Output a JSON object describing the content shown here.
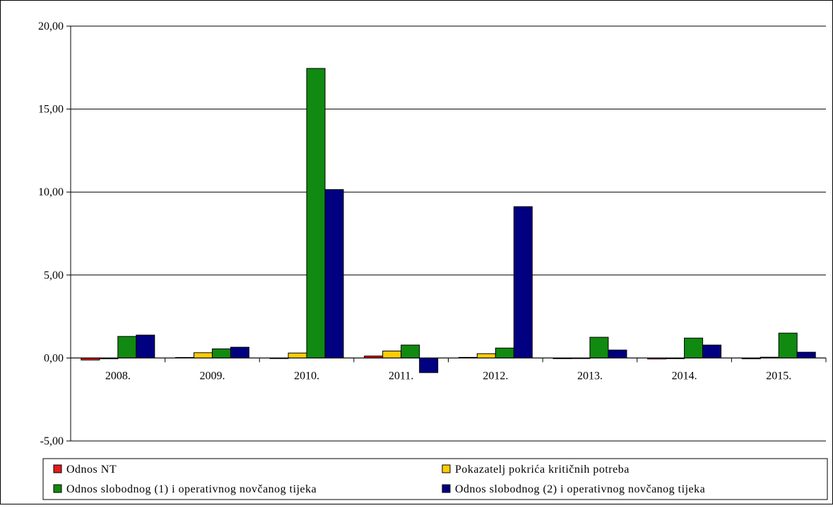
{
  "chart_data": {
    "type": "bar",
    "categories": [
      "2008.",
      "2009.",
      "2010.",
      "2011.",
      "2012.",
      "2013.",
      "2014.",
      "2015."
    ],
    "ylim": [
      -5,
      20
    ],
    "yticks": [
      -5,
      0,
      5,
      10,
      15,
      20
    ],
    "ytick_labels": [
      "-5,00",
      "0,00",
      "5,00",
      "10,00",
      "15,00",
      "20,00"
    ],
    "grid": true,
    "legend_position": "bottom",
    "series": [
      {
        "name": "Odnos NT",
        "color": "#e31a1c",
        "values": [
          -0.12,
          0.03,
          0.0,
          0.12,
          0.04,
          -0.04,
          -0.06,
          -0.05
        ]
      },
      {
        "name": "Pokazatelj pokrića kritičnih potreba",
        "color": "#ffcc00",
        "values": [
          -0.05,
          0.32,
          0.3,
          0.42,
          0.26,
          0.0,
          -0.04,
          0.05
        ]
      },
      {
        "name": "Odnos slobodnog (1) i operativnog novčanog tijeka",
        "color": "#108a10",
        "values": [
          1.3,
          0.55,
          17.45,
          0.78,
          0.6,
          1.25,
          1.2,
          1.5
        ]
      },
      {
        "name": "Odnos slobodnog (2) i operativnog novčanog tijeka",
        "color": "#000080",
        "values": [
          1.38,
          0.65,
          10.15,
          -0.88,
          9.12,
          0.48,
          0.78,
          0.35
        ]
      }
    ]
  }
}
